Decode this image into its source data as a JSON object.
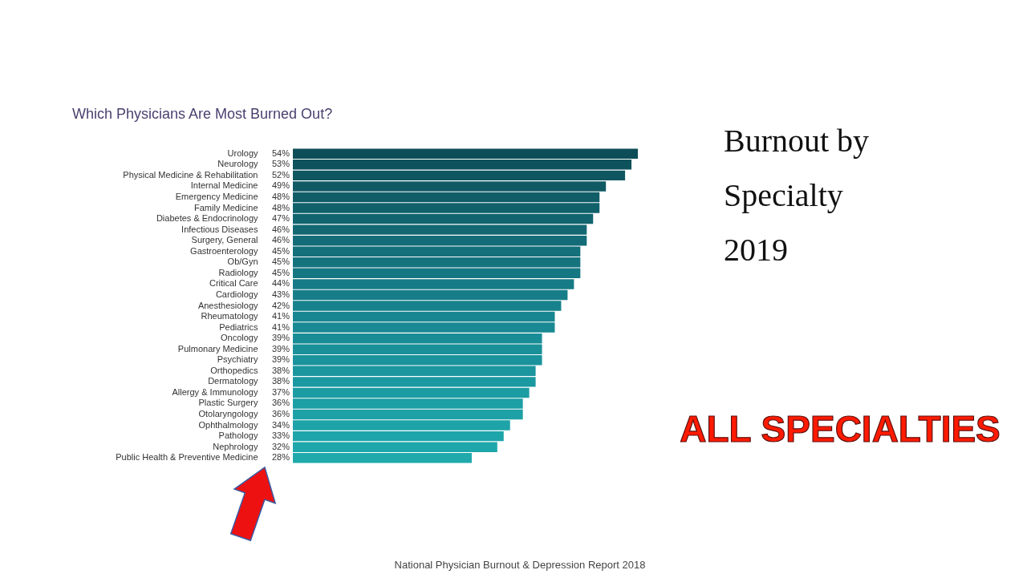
{
  "chart_data": {
    "type": "bar",
    "orientation": "horizontal",
    "title": "Which Physicians Are Most Burned Out?",
    "categories": [
      "Urology",
      "Neurology",
      "Physical Medicine & Rehabilitation",
      "Internal Medicine",
      "Emergency Medicine",
      "Family Medicine",
      "Diabetes & Endocrinology",
      "Infectious Diseases",
      "Surgery, General",
      "Gastroenterology",
      "Ob/Gyn",
      "Radiology",
      "Critical Care",
      "Cardiology",
      "Anesthesiology",
      "Rheumatology",
      "Pediatrics",
      "Oncology",
      "Pulmonary Medicine",
      "Psychiatry",
      "Orthopedics",
      "Dermatology",
      "Allergy & Immunology",
      "Plastic Surgery",
      "Otolaryngology",
      "Ophthalmology",
      "Pathology",
      "Nephrology",
      "Public Health & Preventive Medicine"
    ],
    "values": [
      54,
      53,
      52,
      49,
      48,
      48,
      47,
      46,
      46,
      45,
      45,
      45,
      44,
      43,
      42,
      41,
      41,
      39,
      39,
      39,
      38,
      38,
      37,
      36,
      36,
      34,
      33,
      32,
      28
    ],
    "value_labels": [
      "54%",
      "53%",
      "52%",
      "49%",
      "48%",
      "48%",
      "47%",
      "46%",
      "46%",
      "45%",
      "45%",
      "45%",
      "44%",
      "43%",
      "42%",
      "41%",
      "41%",
      "39%",
      "39%",
      "39%",
      "38%",
      "38%",
      "37%",
      "36%",
      "36%",
      "34%",
      "33%",
      "32%",
      "28%"
    ],
    "colors": [
      "#0d4d57",
      "#0e525c",
      "#0f5660",
      "#105a64",
      "#105d68",
      "#11616b",
      "#12656f",
      "#136873",
      "#136c77",
      "#14707a",
      "#15737e",
      "#157782",
      "#167b85",
      "#177e89",
      "#17828c",
      "#188690",
      "#198993",
      "#198d96",
      "#1a9099",
      "#1a939c",
      "#1b969f",
      "#1b99a1",
      "#1c9ca3",
      "#1c9fa5",
      "#1da1a7",
      "#1da3a8",
      "#1ea5a9",
      "#1ea7aa",
      "#1fa9ab"
    ],
    "annotations": [
      "Burnout by\nSpecialty\n2019",
      "ALL SPECIALTIES",
      "National Physician Burnout & Depression Report 2018"
    ]
  }
}
